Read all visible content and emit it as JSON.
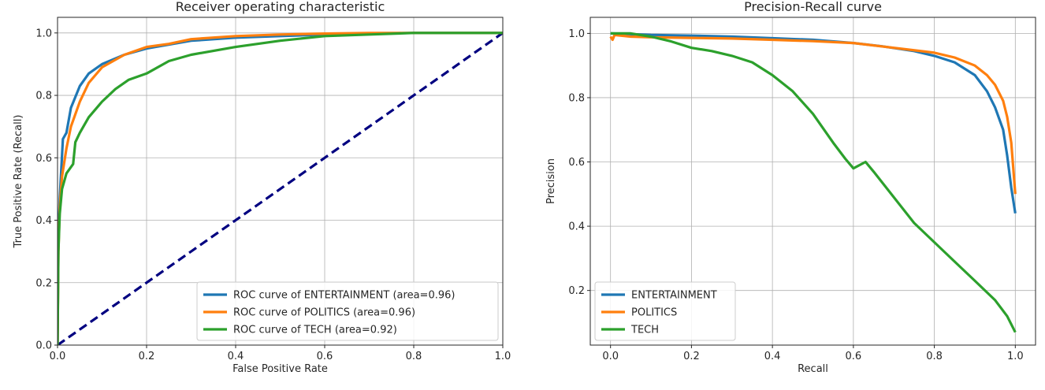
{
  "colors": {
    "entertainment": "#1f77b4",
    "politics": "#ff7f0e",
    "tech": "#2ca02c",
    "diagonal": "#000080",
    "grid": "#b0b0b0",
    "axis": "#262626"
  },
  "chart_data": [
    {
      "id": "roc",
      "type": "line",
      "title": "Receiver operating characteristic",
      "xlabel": "False Positive Rate",
      "ylabel": "True Positive Rate (Recall)",
      "xlim": [
        0.0,
        1.0
      ],
      "ylim": [
        0.0,
        1.05
      ],
      "xticks": [
        "0.0",
        "0.2",
        "0.4",
        "0.6",
        "0.8",
        "1.0"
      ],
      "yticks": [
        "0.0",
        "0.2",
        "0.4",
        "0.6",
        "0.8",
        "1.0"
      ],
      "grid": true,
      "legend_position": "lower-right",
      "series": [
        {
          "name": "ROC curve of ENTERTAINMENT (area=0.96)",
          "color_key": "entertainment",
          "x": [
            0.0,
            0.002,
            0.005,
            0.008,
            0.012,
            0.02,
            0.03,
            0.05,
            0.07,
            0.1,
            0.15,
            0.2,
            0.3,
            0.4,
            0.5,
            0.6,
            0.7,
            0.8,
            0.9,
            1.0
          ],
          "y": [
            0.0,
            0.35,
            0.47,
            0.55,
            0.66,
            0.68,
            0.76,
            0.83,
            0.87,
            0.9,
            0.93,
            0.95,
            0.975,
            0.985,
            0.99,
            0.995,
            0.998,
            1.0,
            1.0,
            1.0
          ]
        },
        {
          "name": "ROC curve of POLITICS (area=0.96)",
          "color_key": "politics",
          "x": [
            0.0,
            0.002,
            0.005,
            0.01,
            0.02,
            0.03,
            0.05,
            0.07,
            0.1,
            0.15,
            0.2,
            0.25,
            0.3,
            0.4,
            0.5,
            0.6,
            0.7,
            0.8,
            0.9,
            1.0
          ],
          "y": [
            0.0,
            0.3,
            0.44,
            0.54,
            0.63,
            0.7,
            0.78,
            0.84,
            0.89,
            0.93,
            0.955,
            0.965,
            0.98,
            0.99,
            0.995,
            0.998,
            1.0,
            1.0,
            1.0,
            1.0
          ]
        },
        {
          "name": "ROC curve of TECH (area=0.92)",
          "color_key": "tech",
          "x": [
            0.0,
            0.002,
            0.005,
            0.01,
            0.02,
            0.035,
            0.04,
            0.05,
            0.07,
            0.1,
            0.13,
            0.16,
            0.2,
            0.25,
            0.3,
            0.4,
            0.5,
            0.6,
            0.7,
            0.8,
            0.9,
            1.0
          ],
          "y": [
            0.0,
            0.3,
            0.42,
            0.5,
            0.55,
            0.58,
            0.65,
            0.68,
            0.73,
            0.78,
            0.82,
            0.85,
            0.87,
            0.91,
            0.93,
            0.955,
            0.975,
            0.99,
            0.995,
            1.0,
            1.0,
            1.0
          ]
        }
      ],
      "reference_line": {
        "x": [
          0.0,
          1.0
        ],
        "y": [
          0.0,
          1.0
        ],
        "style": "dashed"
      }
    },
    {
      "id": "pr",
      "type": "line",
      "title": "Precision-Recall curve",
      "xlabel": "Recall",
      "ylabel": "Precision",
      "xlim": [
        -0.05,
        1.05
      ],
      "ylim": [
        0.03,
        1.05
      ],
      "xticks": [
        "0.0",
        "0.2",
        "0.4",
        "0.6",
        "0.8",
        "1.0"
      ],
      "yticks": [
        "0.2",
        "0.4",
        "0.6",
        "0.8",
        "1.0"
      ],
      "grid": true,
      "legend_position": "lower-left",
      "series": [
        {
          "name": "ENTERTAINMENT",
          "color_key": "entertainment",
          "x": [
            0.0,
            0.1,
            0.2,
            0.3,
            0.4,
            0.5,
            0.6,
            0.67,
            0.75,
            0.8,
            0.85,
            0.9,
            0.93,
            0.95,
            0.97,
            0.98,
            0.99,
            1.0
          ],
          "y": [
            1.0,
            0.995,
            0.993,
            0.99,
            0.985,
            0.98,
            0.97,
            0.96,
            0.945,
            0.93,
            0.91,
            0.87,
            0.82,
            0.77,
            0.7,
            0.62,
            0.52,
            0.44
          ]
        },
        {
          "name": "POLITICS",
          "color_key": "politics",
          "x": [
            0.0,
            0.005,
            0.01,
            0.05,
            0.1,
            0.2,
            0.3,
            0.4,
            0.5,
            0.6,
            0.7,
            0.8,
            0.85,
            0.9,
            0.93,
            0.95,
            0.97,
            0.98,
            0.99,
            1.0
          ],
          "y": [
            0.99,
            0.98,
            0.995,
            0.99,
            0.988,
            0.986,
            0.984,
            0.98,
            0.976,
            0.97,
            0.955,
            0.94,
            0.925,
            0.9,
            0.87,
            0.84,
            0.79,
            0.74,
            0.66,
            0.5
          ]
        },
        {
          "name": "TECH",
          "color_key": "tech",
          "x": [
            0.0,
            0.05,
            0.1,
            0.15,
            0.2,
            0.25,
            0.3,
            0.35,
            0.4,
            0.45,
            0.5,
            0.55,
            0.58,
            0.6,
            0.63,
            0.65,
            0.7,
            0.75,
            0.8,
            0.85,
            0.9,
            0.95,
            0.98,
            1.0
          ],
          "y": [
            1.0,
            1.0,
            0.99,
            0.975,
            0.955,
            0.945,
            0.93,
            0.91,
            0.87,
            0.82,
            0.75,
            0.66,
            0.61,
            0.58,
            0.6,
            0.57,
            0.49,
            0.41,
            0.35,
            0.29,
            0.23,
            0.17,
            0.12,
            0.07
          ]
        }
      ]
    }
  ]
}
